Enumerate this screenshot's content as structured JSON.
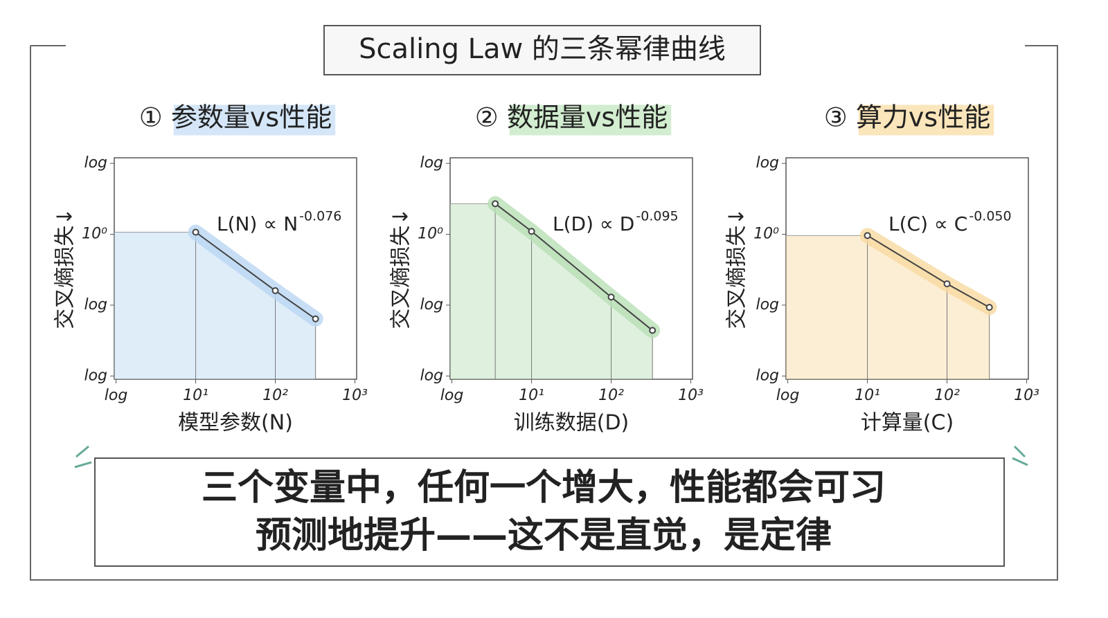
{
  "title": "Scaling Law 的三条幂律曲线",
  "caption": [
    "三个变量中，任何一个增大，性能都会可习",
    "预测地提升——这不是直觉，是定律"
  ],
  "chart_data": [
    {
      "type": "line",
      "title": "① 参数量vs性能",
      "highlight": "#cfe3f7",
      "xlabel": "模型参数(N)",
      "ylabel": "交叉熵损失↓",
      "formula": "L(N) ∝ N",
      "exponent": "-0.076",
      "log_x": true,
      "log_y": true,
      "xlim": [
        0.95,
        1050
      ],
      "ylim": [
        0.009,
        12
      ],
      "xticks": [
        {
          "value": 1,
          "label": "log"
        },
        {
          "value": 10,
          "label": "10¹"
        },
        {
          "value": 100,
          "label": "10²"
        },
        {
          "value": 1000,
          "label": "10³"
        }
      ],
      "yticks": [
        {
          "value": 10,
          "label": "log"
        },
        {
          "value": 1,
          "label": "10⁰"
        },
        {
          "value": 0.1,
          "label": "log"
        },
        {
          "value": 0.01,
          "label": "log"
        }
      ],
      "series": [
        {
          "color": "#444444",
          "band": "#b9d6f2",
          "x": [
            10,
            100,
            320
          ],
          "values": [
            1.07,
            0.16,
            0.064
          ]
        }
      ]
    },
    {
      "type": "line",
      "title": "② 数据量vs性能",
      "highlight": "#cdebcb",
      "xlabel": "训练数据(D)",
      "ylabel": "交叉熵损失↓",
      "formula": "L(D) ∝ D",
      "exponent": "-0.095",
      "log_x": true,
      "log_y": true,
      "xlim": [
        0.95,
        1050
      ],
      "ylim": [
        0.009,
        12
      ],
      "xticks": [
        {
          "value": 1,
          "label": "log"
        },
        {
          "value": 10,
          "label": "10¹"
        },
        {
          "value": 100,
          "label": "10²"
        },
        {
          "value": 1000,
          "label": "10³"
        }
      ],
      "yticks": [
        {
          "value": 10,
          "label": "log"
        },
        {
          "value": 1,
          "label": "10⁰"
        },
        {
          "value": 0.1,
          "label": "log"
        },
        {
          "value": 0.01,
          "label": "log"
        }
      ],
      "series": [
        {
          "color": "#444444",
          "band": "#b8e0b5",
          "x": [
            3.5,
            10,
            100,
            330
          ],
          "values": [
            2.7,
            1.1,
            0.13,
            0.044
          ]
        }
      ]
    },
    {
      "type": "line",
      "title": "③ 算力vs性能",
      "highlight": "#fbe2b4",
      "xlabel": "计算量(C)",
      "ylabel": "交叉熵损失↓",
      "formula": "L(C) ∝ C",
      "exponent": "-0.050",
      "log_x": true,
      "log_y": true,
      "xlim": [
        0.95,
        1050
      ],
      "ylim": [
        0.009,
        12
      ],
      "xticks": [
        {
          "value": 1,
          "label": "log"
        },
        {
          "value": 10,
          "label": "10¹"
        },
        {
          "value": 100,
          "label": "10²"
        },
        {
          "value": 1000,
          "label": "10³"
        }
      ],
      "yticks": [
        {
          "value": 10,
          "label": "log"
        },
        {
          "value": 1,
          "label": "10⁰"
        },
        {
          "value": 0.1,
          "label": "log"
        },
        {
          "value": 0.01,
          "label": "log"
        }
      ],
      "series": [
        {
          "color": "#444444",
          "band": "#f8d9a0",
          "x": [
            10,
            100,
            340
          ],
          "values": [
            0.96,
            0.2,
            0.093
          ]
        }
      ]
    }
  ]
}
